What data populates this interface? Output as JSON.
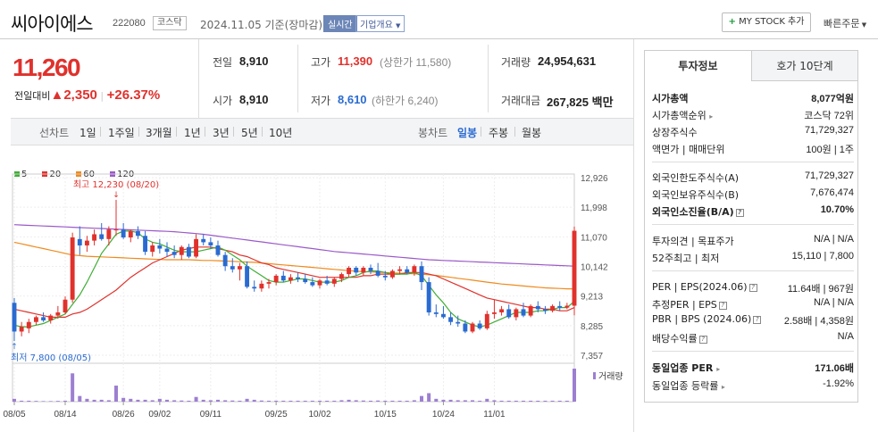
{
  "header": {
    "company": "씨아이에스",
    "code": "222080",
    "market": "코스닥",
    "date": "2024.11.05 기준(장마감)",
    "live_btn": "실시간",
    "overview_btn": "기업개요",
    "mystock_btn": "MY STOCK 추가",
    "quick_order": "빠른주문"
  },
  "quote": {
    "price": "11,260",
    "change_label": "전일대비",
    "change": "2,350",
    "change_pct": "+26.37%",
    "prev_label": "전일",
    "prev": "8,910",
    "open_label": "시가",
    "open": "8,910",
    "high_label": "고가",
    "high": "11,390",
    "upper_limit": "(상한가 11,580)",
    "low_label": "저가",
    "low": "8,610",
    "lower_limit": "(하한가 6,240)",
    "volume_label": "거래량",
    "volume": "24,954,631",
    "amount_label": "거래대금",
    "amount": "267,825 백만"
  },
  "period_tabs": {
    "line_label": "선차트",
    "items": [
      "1일",
      "1주일",
      "3개월",
      "1년",
      "3년",
      "5년",
      "10년"
    ],
    "candle_label": "봉차트",
    "candle_items": [
      "일봉",
      "주봉",
      "월봉"
    ]
  },
  "colors": {
    "up": "#e0312c",
    "down": "#2a6bd1",
    "ma5": "#3fae35",
    "ma20": "#e0312c",
    "ma60": "#f08a1d",
    "ma120": "#9b59c9"
  },
  "chart_data": {
    "type": "candlestick",
    "legend": [
      "5",
      "20",
      "60",
      "120"
    ],
    "y_ticks": [
      "12,926",
      "11,998",
      "11,070",
      "10,142",
      "9,213",
      "8,285",
      "7,357"
    ],
    "ylim": [
      7357,
      12926
    ],
    "x_ticks": [
      "08/05",
      "08/14",
      "08/26",
      "09/02",
      "09/11",
      "09/25",
      "10/02",
      "10/15",
      "10/24",
      "11/01"
    ],
    "max_annotation": "최고 12,230 (08/20)",
    "min_annotation": "최저 7,800 (08/05)",
    "volume_label": "거래량",
    "candles": [
      [
        9000,
        9150,
        7800,
        8100
      ],
      [
        8100,
        8400,
        7950,
        8250
      ],
      [
        8200,
        8500,
        8050,
        8400
      ],
      [
        8400,
        8600,
        8300,
        8550
      ],
      [
        8550,
        8700,
        8400,
        8450
      ],
      [
        8450,
        8650,
        8350,
        8600
      ],
      [
        8600,
        8900,
        8500,
        8700
      ],
      [
        8700,
        9200,
        8650,
        9100
      ],
      [
        9100,
        11200,
        9000,
        11050
      ],
      [
        11000,
        11400,
        10500,
        10800
      ],
      [
        10800,
        11100,
        10600,
        10950
      ],
      [
        10950,
        11300,
        10800,
        11150
      ],
      [
        11150,
        11500,
        10950,
        11000
      ],
      [
        11000,
        11400,
        10800,
        11300
      ],
      [
        11300,
        12230,
        11100,
        11300
      ],
      [
        11300,
        11500,
        11000,
        11050
      ],
      [
        11050,
        11300,
        10900,
        11250
      ],
      [
        11250,
        11400,
        11000,
        11100
      ],
      [
        11100,
        11250,
        10500,
        10600
      ],
      [
        10600,
        10900,
        10450,
        10800
      ],
      [
        10800,
        11000,
        10550,
        10700
      ],
      [
        10700,
        10900,
        10450,
        10600
      ],
      [
        10600,
        10800,
        10400,
        10500
      ],
      [
        10500,
        10800,
        10350,
        10750
      ],
      [
        10750,
        10850,
        10400,
        10450
      ],
      [
        10450,
        11150,
        10400,
        11000
      ],
      [
        11000,
        11150,
        10800,
        10900
      ],
      [
        10900,
        11050,
        10700,
        10800
      ],
      [
        10800,
        10950,
        10450,
        10500
      ],
      [
        10500,
        10600,
        10000,
        10150
      ],
      [
        10150,
        10400,
        9950,
        10050
      ],
      [
        10050,
        10250,
        9700,
        10150
      ],
      [
        10150,
        10300,
        9450,
        9500
      ],
      [
        9500,
        9700,
        9350,
        9450
      ],
      [
        9450,
        9700,
        9350,
        9600
      ],
      [
        9600,
        9750,
        9450,
        9650
      ],
      [
        9650,
        9900,
        9550,
        9850
      ],
      [
        9850,
        10000,
        9650,
        9700
      ],
      [
        9700,
        9900,
        9600,
        9800
      ],
      [
        9800,
        9950,
        9650,
        9750
      ],
      [
        9750,
        9900,
        9600,
        9650
      ],
      [
        9650,
        9800,
        9500,
        9550
      ],
      [
        9550,
        9750,
        9450,
        9700
      ],
      [
        9700,
        9850,
        9550,
        9600
      ],
      [
        9600,
        9800,
        9500,
        9750
      ],
      [
        9750,
        9950,
        9650,
        9900
      ],
      [
        9900,
        10150,
        9800,
        10100
      ],
      [
        10100,
        10150,
        9850,
        9950
      ],
      [
        9950,
        10150,
        9850,
        10100
      ],
      [
        10100,
        10200,
        9900,
        10000
      ],
      [
        10000,
        10250,
        9800,
        9850
      ],
      [
        9850,
        10000,
        9700,
        9800
      ],
      [
        9800,
        10050,
        9750,
        10000
      ],
      [
        10000,
        10150,
        9900,
        10050
      ],
      [
        10050,
        10150,
        9900,
        9950
      ],
      [
        9950,
        10200,
        9850,
        10150
      ],
      [
        10150,
        10300,
        9400,
        9650
      ],
      [
        9650,
        9800,
        8600,
        8700
      ],
      [
        8700,
        8950,
        8550,
        8650
      ],
      [
        8650,
        8900,
        8500,
        8550
      ],
      [
        8550,
        8700,
        8300,
        8400
      ],
      [
        8400,
        8600,
        8250,
        8350
      ],
      [
        8350,
        8450,
        8050,
        8100
      ],
      [
        8100,
        8400,
        8050,
        8350
      ],
      [
        8350,
        8450,
        8150,
        8200
      ],
      [
        8200,
        8750,
        8150,
        8650
      ],
      [
        8650,
        9100,
        8500,
        8700
      ],
      [
        8700,
        8900,
        8600,
        8800
      ],
      [
        8800,
        8950,
        8500,
        8550
      ],
      [
        8550,
        8850,
        8450,
        8800
      ],
      [
        8800,
        9000,
        8550,
        8600
      ],
      [
        8600,
        8950,
        8550,
        8900
      ],
      [
        8900,
        9050,
        8700,
        8800
      ],
      [
        8800,
        8900,
        8650,
        8750
      ],
      [
        8750,
        8950,
        8700,
        8900
      ],
      [
        8900,
        9050,
        8750,
        8850
      ],
      [
        8850,
        9000,
        8800,
        8910
      ],
      [
        8910,
        11390,
        8610,
        11260
      ]
    ],
    "volumes": [
      3,
      1,
      1,
      0.8,
      0.6,
      0.6,
      0.8,
      1,
      30,
      6,
      3,
      2,
      2,
      1.5,
      17,
      4,
      3,
      2,
      2,
      1.5,
      3,
      2,
      1.5,
      1.2,
      1,
      5,
      2,
      1.5,
      2,
      1.5,
      1.2,
      1,
      3,
      2,
      1.2,
      1,
      1,
      1,
      1,
      1,
      1,
      1,
      1,
      1,
      1,
      1.5,
      2,
      1.5,
      1.2,
      1,
      1.2,
      1,
      1,
      1,
      1,
      1.5,
      6,
      9,
      3,
      2,
      2,
      1.5,
      1.5,
      1.5,
      1,
      3,
      1.5,
      1,
      1,
      1,
      1,
      1,
      1,
      1,
      1,
      1,
      1,
      35
    ],
    "ma5": [
      8300,
      8250,
      8250,
      8300,
      8350,
      8450,
      8550,
      8650,
      8950,
      9250,
      9650,
      10100,
      10550,
      10850,
      11150,
      11250,
      11250,
      11200,
      11000,
      10900,
      10850,
      10750,
      10650,
      10600,
      10600,
      10600,
      10650,
      10700,
      10750,
      10650,
      10500,
      10350,
      10150,
      10000,
      9850,
      9700,
      9650,
      9650,
      9700,
      9750,
      9750,
      9700,
      9650,
      9650,
      9650,
      9700,
      9800,
      9850,
      9950,
      10000,
      10000,
      9950,
      9900,
      9900,
      9900,
      9950,
      9850,
      9550,
      9250,
      9000,
      8700,
      8500,
      8400,
      8300,
      8250,
      8300,
      8400,
      8500,
      8600,
      8700,
      8700,
      8700,
      8750,
      8750,
      8800,
      8850,
      8850,
      9050
    ],
    "ma20": [
      8800,
      8750,
      8700,
      8650,
      8600,
      8550,
      8550,
      8550,
      8650,
      8700,
      8800,
      8950,
      9100,
      9250,
      9400,
      9600,
      9800,
      9950,
      10100,
      10250,
      10350,
      10450,
      10550,
      10650,
      10700,
      10750,
      10750,
      10750,
      10700,
      10650,
      10600,
      10500,
      10450,
      10350,
      10250,
      10200,
      10100,
      10050,
      10000,
      9950,
      9900,
      9850,
      9800,
      9800,
      9800,
      9800,
      9800,
      9800,
      9850,
      9850,
      9900,
      9900,
      9900,
      9900,
      9950,
      9950,
      9950,
      9900,
      9850,
      9750,
      9650,
      9550,
      9450,
      9350,
      9250,
      9150,
      9100,
      9050,
      9000,
      8950,
      8900,
      8850,
      8850,
      8800,
      8800,
      8750,
      8750,
      8850
    ],
    "ma60": [
      10900,
      10850,
      10800,
      10750,
      10700,
      10650,
      10600,
      10550,
      10500,
      10480,
      10460,
      10450,
      10440,
      10430,
      10420,
      10410,
      10400,
      10390,
      10380,
      10370,
      10360,
      10350,
      10350,
      10350,
      10350,
      10340,
      10330,
      10330,
      10320,
      10310,
      10300,
      10290,
      10280,
      10270,
      10250,
      10230,
      10210,
      10190,
      10170,
      10150,
      10130,
      10110,
      10090,
      10070,
      10050,
      10030,
      10010,
      9990,
      9980,
      9970,
      9960,
      9950,
      9940,
      9930,
      9920,
      9910,
      9900,
      9880,
      9860,
      9830,
      9800,
      9770,
      9740,
      9710,
      9680,
      9650,
      9620,
      9590,
      9570,
      9550,
      9530,
      9510,
      9490,
      9470,
      9460,
      9450,
      9440,
      9440
    ],
    "ma120": [
      11450,
      11440,
      11430,
      11420,
      11410,
      11400,
      11390,
      11380,
      11370,
      11360,
      11350,
      11340,
      11330,
      11320,
      11310,
      11300,
      11290,
      11280,
      11270,
      11260,
      11250,
      11240,
      11230,
      11210,
      11190,
      11170,
      11150,
      11120,
      11090,
      11060,
      11030,
      11000,
      10970,
      10940,
      10910,
      10880,
      10850,
      10820,
      10790,
      10760,
      10730,
      10700,
      10670,
      10640,
      10610,
      10590,
      10570,
      10550,
      10530,
      10510,
      10490,
      10470,
      10450,
      10430,
      10410,
      10390,
      10370,
      10350,
      10340,
      10330,
      10320,
      10310,
      10300,
      10290,
      10280,
      10270,
      10260,
      10250,
      10240,
      10230,
      10220,
      10210,
      10200,
      10190,
      10180,
      10170,
      10160,
      10150
    ]
  },
  "info_panel": {
    "tab_invest": "투자정보",
    "tab_hoga": "호가 10단계",
    "market_cap_label": "시가총액",
    "market_cap": "8,077억원",
    "cap_rank_label": "시가총액순위",
    "cap_rank": "코스닥 72위",
    "shares_label": "상장주식수",
    "shares": "71,729,327",
    "par_label": "액면가 | 매매단위",
    "par": "100원 | 1주",
    "foreign_limit_label": "외국인한도주식수(A)",
    "foreign_limit": "71,729,327",
    "foreign_hold_label": "외국인보유주식수(B)",
    "foreign_hold": "7,676,474",
    "foreign_rate_label": "외국인소진율(B/A)",
    "foreign_rate": "10.70%",
    "opinion_label": "투자의견 | 목표주가",
    "opinion": "N/A | N/A",
    "w52_label": "52주최고 | 최저",
    "w52": "15,110 | 7,800",
    "per_label": "PER | EPS(2024.06)",
    "per": "11.64배 | 967원",
    "est_per_label": "추정PER | EPS",
    "est_per": "N/A | N/A",
    "pbr_label": "PBR | BPS (2024.06)",
    "pbr": "2.58배 | 4,358원",
    "dividend_label": "배당수익률",
    "dividend": "N/A",
    "sector_per_label": "동일업종 PER",
    "sector_per": "171.06배",
    "sector_rate_label": "동일업종 등락률",
    "sector_rate": "-1.92%"
  }
}
